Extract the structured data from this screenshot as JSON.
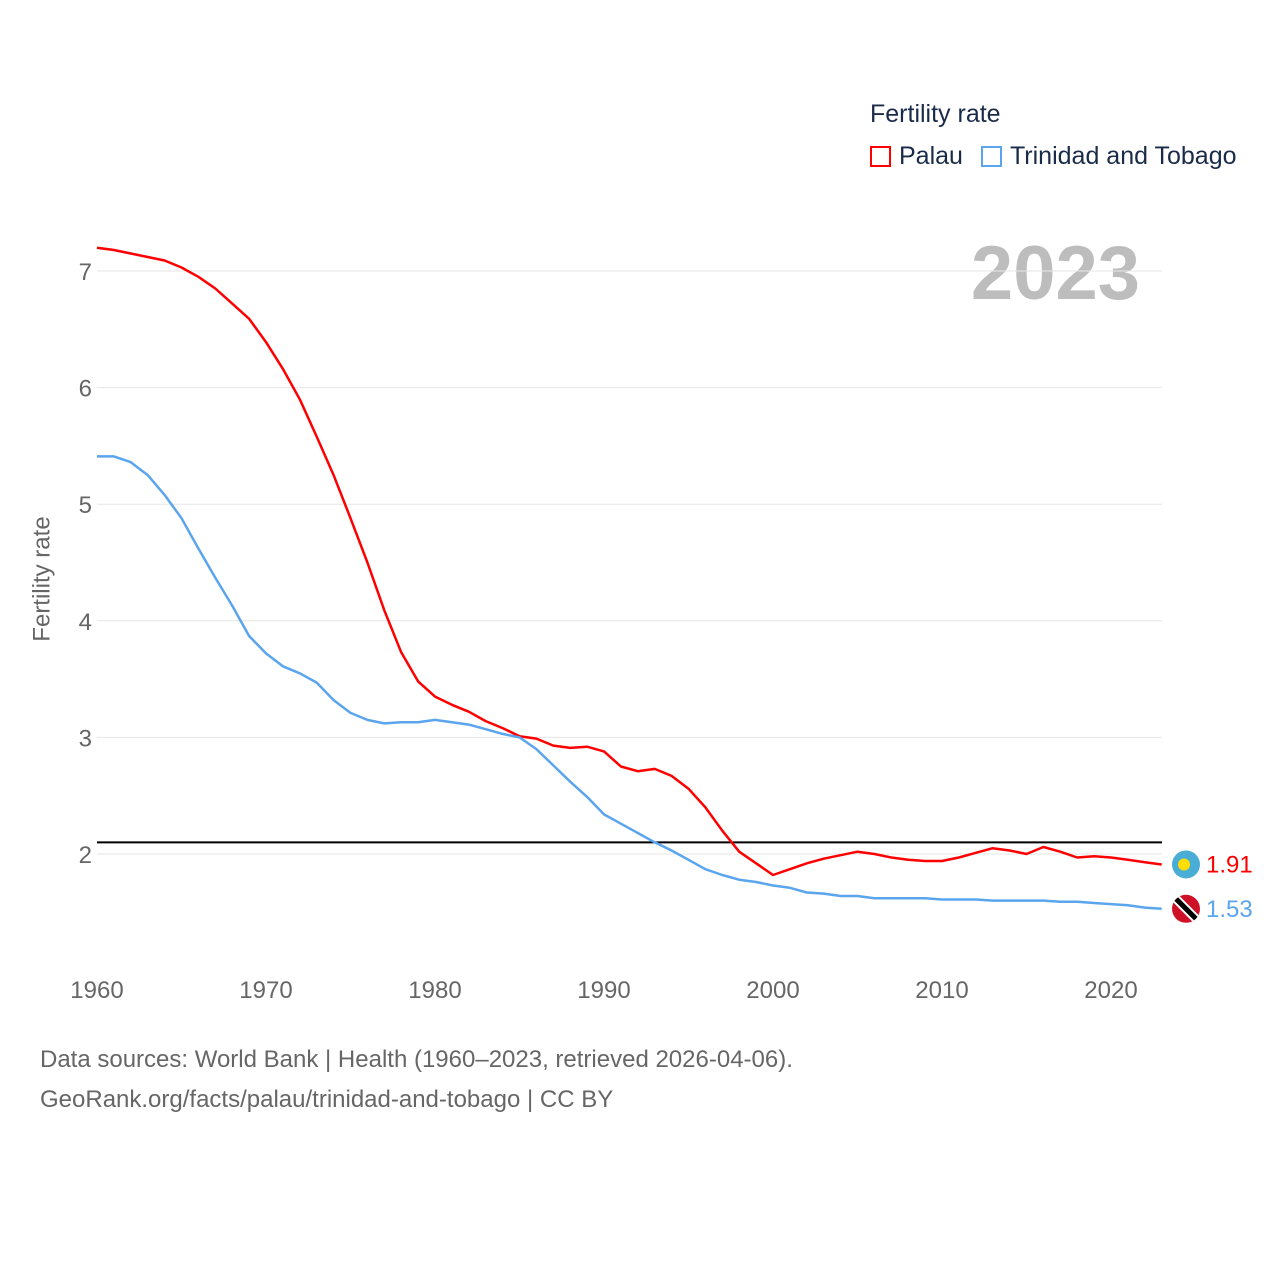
{
  "chart_data": {
    "type": "line",
    "title": "Fertility rate",
    "ylabel": "Fertility rate",
    "xlabel": "",
    "xlim": [
      1960,
      2023
    ],
    "ylim": [
      1.2,
      7.4
    ],
    "x_ticks": [
      "1960",
      "1970",
      "1980",
      "1990",
      "2000",
      "2010",
      "2020"
    ],
    "y_ticks": [
      "2",
      "3",
      "4",
      "5",
      "6",
      "7"
    ],
    "grid": true,
    "legend_position": "top-right",
    "current_year": "2023",
    "reference_line": 2.1,
    "x": [
      1960,
      1961,
      1962,
      1963,
      1964,
      1965,
      1966,
      1967,
      1968,
      1969,
      1970,
      1971,
      1972,
      1973,
      1974,
      1975,
      1976,
      1977,
      1978,
      1979,
      1980,
      1981,
      1982,
      1983,
      1984,
      1985,
      1986,
      1987,
      1988,
      1989,
      1990,
      1991,
      1992,
      1993,
      1994,
      1995,
      1996,
      1997,
      1998,
      1999,
      2000,
      2001,
      2002,
      2003,
      2004,
      2005,
      2006,
      2007,
      2008,
      2009,
      2010,
      2011,
      2012,
      2013,
      2014,
      2015,
      2016,
      2017,
      2018,
      2019,
      2020,
      2021,
      2022,
      2023
    ],
    "series": [
      {
        "name": "Palau",
        "color": "#ff0000",
        "end_label": "1.91",
        "values": [
          7.2,
          7.18,
          7.15,
          7.12,
          7.09,
          7.03,
          6.95,
          6.85,
          6.72,
          6.59,
          6.39,
          6.16,
          5.9,
          5.58,
          5.25,
          4.88,
          4.5,
          4.09,
          3.73,
          3.48,
          3.35,
          3.28,
          3.22,
          3.14,
          3.08,
          3.01,
          2.99,
          2.93,
          2.91,
          2.92,
          2.88,
          2.75,
          2.71,
          2.73,
          2.67,
          2.56,
          2.4,
          2.2,
          2.02,
          1.92,
          1.82,
          1.87,
          1.92,
          1.96,
          1.99,
          2.02,
          2.0,
          1.97,
          1.95,
          1.94,
          1.94,
          1.97,
          2.01,
          2.05,
          2.03,
          2.0,
          2.06,
          2.02,
          1.97,
          1.98,
          1.97,
          1.95,
          1.93,
          1.91
        ]
      },
      {
        "name": "Trinidad and Tobago",
        "color": "#5aa5ee",
        "end_label": "1.53",
        "values": [
          5.41,
          5.41,
          5.36,
          5.25,
          5.08,
          4.88,
          4.62,
          4.37,
          4.13,
          3.87,
          3.72,
          3.61,
          3.55,
          3.47,
          3.32,
          3.21,
          3.15,
          3.12,
          3.13,
          3.13,
          3.15,
          3.13,
          3.11,
          3.07,
          3.03,
          3.0,
          2.9,
          2.76,
          2.62,
          2.49,
          2.34,
          2.26,
          2.18,
          2.1,
          2.03,
          1.95,
          1.87,
          1.82,
          1.78,
          1.76,
          1.73,
          1.71,
          1.67,
          1.66,
          1.64,
          1.64,
          1.62,
          1.62,
          1.62,
          1.62,
          1.61,
          1.61,
          1.61,
          1.6,
          1.6,
          1.6,
          1.6,
          1.59,
          1.59,
          1.58,
          1.57,
          1.56,
          1.54,
          1.53
        ]
      }
    ]
  },
  "footer": {
    "line1": "Data sources: World Bank | Health (1960–2023, retrieved 2026-04-06).",
    "line2": "GeoRank.org/facts/palau/trinidad-and-tobago | CC BY"
  }
}
